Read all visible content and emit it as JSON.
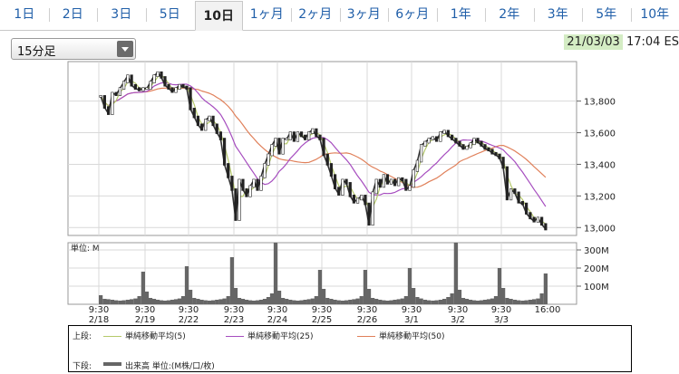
{
  "tabs": [
    {
      "label": "1日"
    },
    {
      "label": "2日"
    },
    {
      "label": "3日"
    },
    {
      "label": "5日"
    },
    {
      "label": "10日",
      "active": true
    },
    {
      "label": "1ヶ月"
    },
    {
      "label": "2ヶ月"
    },
    {
      "label": "3ヶ月"
    },
    {
      "label": "6ヶ月"
    },
    {
      "label": "1年"
    },
    {
      "label": "2年"
    },
    {
      "label": "3年"
    },
    {
      "label": "5年"
    },
    {
      "label": "10年"
    }
  ],
  "interval_select": {
    "value": "15分足"
  },
  "timestamp": {
    "date": "21/03/03",
    "time": "17:04 ES"
  },
  "colors": {
    "price": "#333333",
    "ma5": "#b5c96a",
    "ma25": "#a64dbf",
    "ma50": "#e0805a",
    "volume": "#666666",
    "grid": "#d9d9d9"
  },
  "legend": {
    "upper_label": "上段:",
    "lower_label": "下段:",
    "ma5": "単純移動平均(5)",
    "ma25": "単純移動平均(25)",
    "ma50": "単純移動平均(50)",
    "volume": "出来高 単位:(M株/口/枚)"
  },
  "chart_data": {
    "type": "line",
    "price_axis": {
      "ylim": [
        12950,
        14050
      ],
      "ticks": [
        "13,800",
        "13,600",
        "13,400",
        "13,200",
        "13,000"
      ],
      "tick_values": [
        13800,
        13600,
        13400,
        13200,
        13000
      ]
    },
    "volume_axis": {
      "unit_label": "単位: M",
      "ylim": [
        0,
        340
      ],
      "ticks": [
        "300M",
        "200M",
        "100M"
      ],
      "tick_values": [
        300,
        200,
        100
      ]
    },
    "x_labels": [
      {
        "time": "9:30",
        "date": "2/18"
      },
      {
        "time": "9:30",
        "date": "2/19"
      },
      {
        "time": "9:30",
        "date": "2/22"
      },
      {
        "time": "9:30",
        "date": "2/23"
      },
      {
        "time": "9:30",
        "date": "2/24"
      },
      {
        "time": "9:30",
        "date": "2/25"
      },
      {
        "time": "9:30",
        "date": "2/26"
      },
      {
        "time": "9:30",
        "date": "3/1"
      },
      {
        "time": "9:30",
        "date": "3/2"
      },
      {
        "time": "9:30",
        "date": "3/3"
      },
      {
        "time": "16:00",
        "date": ""
      }
    ],
    "series": [
      {
        "name": "price",
        "values": [
          [
            13830,
            13760,
            13720,
            13850,
            13840,
            13880,
            13920,
            13960,
            13900,
            13880,
            13870,
            13880
          ],
          [
            13880,
            13920,
            13960,
            13980,
            13950,
            13900,
            13880,
            13860,
            13880,
            13900,
            13890,
            13880
          ],
          [
            13750,
            13700,
            13650,
            13620,
            13680,
            13700,
            13650,
            13600,
            13560,
            13400,
            13320,
            13240
          ],
          [
            13050,
            13300,
            13240,
            13200,
            13260,
            13300,
            13240,
            13320,
            13400,
            13460,
            13520,
            13560
          ],
          [
            13470,
            13560,
            13560,
            13600,
            13550,
            13600,
            13580,
            13560,
            13600,
            13620,
            13580,
            13560
          ],
          [
            13460,
            13400,
            13330,
            13250,
            13210,
            13300,
            13280,
            13200,
            13160,
            13180,
            13200,
            13150
          ],
          [
            13020,
            13220,
            13300,
            13260,
            13330,
            13280,
            13300,
            13270,
            13310,
            13300,
            13240,
            13260
          ],
          [
            13360,
            13420,
            13520,
            13540,
            13560,
            13570,
            13550,
            13600,
            13610,
            13580,
            13560,
            13540
          ],
          [
            13520,
            13500,
            13510,
            13530,
            13560,
            13540,
            13520,
            13500,
            13490,
            13470,
            13460,
            13440
          ],
          [
            13380,
            13180,
            13240,
            13220,
            13160,
            13150,
            13090,
            13060,
            13040,
            13060,
            13020,
            12990
          ]
        ]
      },
      {
        "name": "volume",
        "values": [
          [
            50,
            30,
            28,
            25,
            22,
            20,
            22,
            25,
            28,
            32,
            45,
            180
          ],
          [
            70,
            35,
            30,
            25,
            22,
            20,
            22,
            25,
            28,
            32,
            45,
            210
          ],
          [
            80,
            35,
            30,
            25,
            22,
            20,
            22,
            25,
            28,
            32,
            45,
            260
          ],
          [
            90,
            35,
            30,
            25,
            22,
            20,
            22,
            25,
            30,
            40,
            60,
            340
          ],
          [
            75,
            35,
            30,
            25,
            22,
            20,
            22,
            25,
            28,
            32,
            45,
            190
          ],
          [
            85,
            35,
            30,
            25,
            22,
            20,
            22,
            25,
            28,
            32,
            45,
            190
          ],
          [
            85,
            35,
            30,
            25,
            22,
            20,
            22,
            25,
            28,
            32,
            45,
            200
          ],
          [
            90,
            40,
            32,
            25,
            22,
            20,
            22,
            25,
            30,
            40,
            60,
            340
          ],
          [
            80,
            35,
            30,
            25,
            22,
            20,
            22,
            25,
            28,
            32,
            45,
            200
          ],
          [
            90,
            35,
            30,
            25,
            22,
            20,
            22,
            25,
            28,
            32,
            60,
            170
          ]
        ]
      }
    ]
  }
}
